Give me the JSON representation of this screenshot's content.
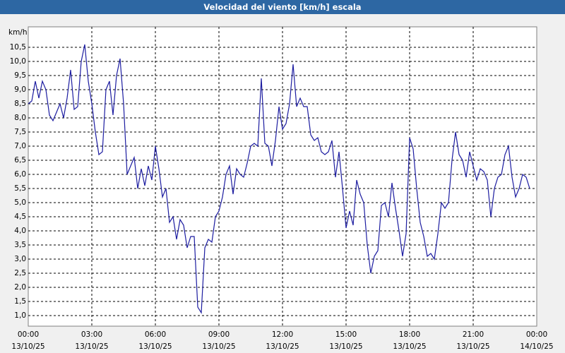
{
  "chart_data": {
    "type": "line",
    "title": "Velocidad del viento [km/h] escala",
    "y_label": "km/h",
    "x": [
      0,
      10,
      20,
      30,
      40,
      50,
      60,
      70,
      80,
      90,
      100,
      110,
      120,
      130,
      140,
      150,
      160,
      170,
      180,
      190,
      200,
      210,
      220,
      230,
      240,
      250,
      260,
      270,
      280,
      290,
      300,
      310,
      320,
      330,
      340,
      350,
      360,
      370,
      380,
      390,
      400,
      410,
      420,
      430,
      440,
      450,
      460,
      470,
      480,
      490,
      500,
      510,
      520,
      530,
      540,
      550,
      560,
      570,
      580,
      590,
      600,
      610,
      620,
      630,
      640,
      650,
      660,
      670,
      680,
      690,
      700,
      710,
      720,
      730,
      740,
      750,
      760,
      770,
      780,
      790,
      800,
      810,
      820,
      830,
      840,
      850,
      860,
      870,
      880,
      890,
      900,
      910,
      920,
      930,
      940,
      950,
      960,
      970,
      980,
      990,
      1000,
      1010,
      1020,
      1030,
      1040,
      1050,
      1060,
      1070,
      1080,
      1090,
      1100,
      1110,
      1120,
      1130,
      1140,
      1150,
      1160,
      1170,
      1180,
      1190,
      1200,
      1210,
      1220,
      1230,
      1240,
      1250,
      1260,
      1270,
      1280,
      1290,
      1300,
      1310,
      1320,
      1330,
      1340,
      1350,
      1360,
      1370,
      1380,
      1390,
      1400,
      1410,
      1420
    ],
    "series": [
      {
        "name": "Velocidad del viento",
        "color": "#1c1ca0",
        "values": [
          8.5,
          8.6,
          9.3,
          8.7,
          9.3,
          9.0,
          8.1,
          7.9,
          8.2,
          8.5,
          8.0,
          8.7,
          9.7,
          8.3,
          8.4,
          10.0,
          10.6,
          9.3,
          8.5,
          7.5,
          6.7,
          6.8,
          9.0,
          9.3,
          8.1,
          9.5,
          10.1,
          8.5,
          6.0,
          6.3,
          6.6,
          5.5,
          6.2,
          5.6,
          6.3,
          5.8,
          7.0,
          6.2,
          5.2,
          5.5,
          4.3,
          4.5,
          3.7,
          4.4,
          4.2,
          3.4,
          3.8,
          3.8,
          1.3,
          1.1,
          3.4,
          3.7,
          3.6,
          4.5,
          4.7,
          5.2,
          6.0,
          6.3,
          5.3,
          6.2,
          6.0,
          5.9,
          6.4,
          7.0,
          7.1,
          7.0,
          9.4,
          7.1,
          7.0,
          6.3,
          7.2,
          8.4,
          7.6,
          7.8,
          8.5,
          9.9,
          8.4,
          8.7,
          8.4,
          8.4,
          7.4,
          7.2,
          7.3,
          6.8,
          6.7,
          6.8,
          7.2,
          5.9,
          6.8,
          5.5,
          4.1,
          4.7,
          4.2,
          5.8,
          5.3,
          5.0,
          3.5,
          2.5,
          3.1,
          3.3,
          4.9,
          5.0,
          4.5,
          5.7,
          4.8,
          4.0,
          3.1,
          3.9,
          7.3,
          6.9,
          5.5,
          4.3,
          3.8,
          3.1,
          3.2,
          3.0,
          3.9,
          5.0,
          4.8,
          5.0,
          6.5,
          7.5,
          6.7,
          6.5,
          5.9,
          6.8,
          6.3,
          5.8,
          6.2,
          6.1,
          5.8,
          4.5,
          5.5,
          5.9,
          6.0,
          6.7,
          7.0,
          5.9,
          5.2,
          5.5,
          6.0,
          5.9,
          5.5
        ]
      }
    ],
    "xlim": [
      0,
      1440
    ],
    "xticks": [
      {
        "value": 0,
        "label": "00:00"
      },
      {
        "value": 180,
        "label": "03:00"
      },
      {
        "value": 360,
        "label": "06:00"
      },
      {
        "value": 540,
        "label": "09:00"
      },
      {
        "value": 720,
        "label": "12:00"
      },
      {
        "value": 900,
        "label": "15:00"
      },
      {
        "value": 1080,
        "label": "18:00"
      },
      {
        "value": 1260,
        "label": "21:00"
      },
      {
        "value": 1440,
        "label": "00:00"
      }
    ],
    "xtick_dates": [
      "13/10/25",
      "13/10/25",
      "13/10/25",
      "13/10/25",
      "13/10/25",
      "13/10/25",
      "13/10/25",
      "13/10/25",
      "14/10/25"
    ],
    "ylim": [
      0.625,
      11.225
    ],
    "yticks": [
      {
        "value": 1.0,
        "label": "1,0"
      },
      {
        "value": 1.5,
        "label": "1,5"
      },
      {
        "value": 2.0,
        "label": "2,0"
      },
      {
        "value": 2.5,
        "label": "2,5"
      },
      {
        "value": 3.0,
        "label": "3,0"
      },
      {
        "value": 3.5,
        "label": "3,5"
      },
      {
        "value": 4.0,
        "label": "4,0"
      },
      {
        "value": 4.5,
        "label": "4,5"
      },
      {
        "value": 5.0,
        "label": "5,0"
      },
      {
        "value": 5.5,
        "label": "5,5"
      },
      {
        "value": 6.0,
        "label": "6,0"
      },
      {
        "value": 6.5,
        "label": "6,5"
      },
      {
        "value": 7.0,
        "label": "7,0"
      },
      {
        "value": 7.5,
        "label": "7,5"
      },
      {
        "value": 8.0,
        "label": "8,0"
      },
      {
        "value": 8.5,
        "label": "8,5"
      },
      {
        "value": 9.0,
        "label": "9,0"
      },
      {
        "value": 9.5,
        "label": "9,5"
      },
      {
        "value": 10.0,
        "label": "10,0"
      },
      {
        "value": 10.5,
        "label": "10,5"
      }
    ],
    "grid": true
  }
}
